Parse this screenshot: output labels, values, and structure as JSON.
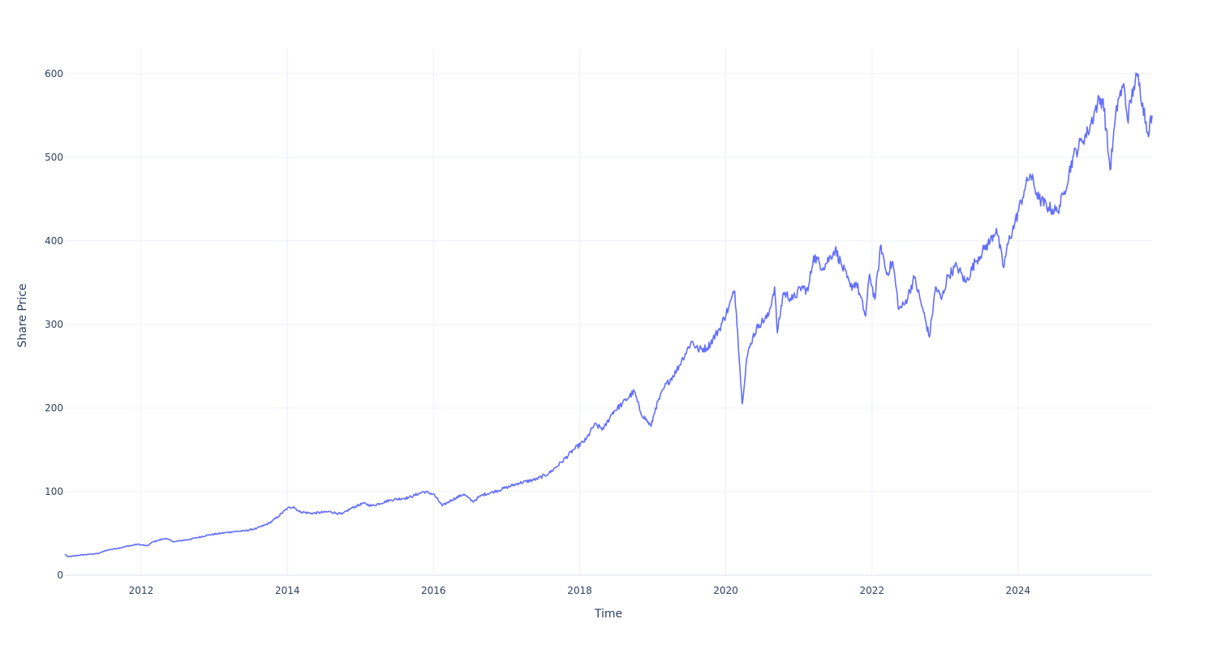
{
  "chart_data": {
    "type": "line",
    "title": "",
    "xlabel": "Time",
    "ylabel": "Share Price",
    "x_range": [
      "2010-12-16",
      "2025-11-01"
    ],
    "y_range": [
      0,
      630
    ],
    "x_ticks": [
      {
        "date": "2012-01-01",
        "label": "2012"
      },
      {
        "date": "2014-01-01",
        "label": "2014"
      },
      {
        "date": "2016-01-01",
        "label": "2016"
      },
      {
        "date": "2018-01-01",
        "label": "2018"
      },
      {
        "date": "2020-01-01",
        "label": "2020"
      },
      {
        "date": "2022-01-01",
        "label": "2022"
      },
      {
        "date": "2024-01-01",
        "label": "2024"
      }
    ],
    "y_ticks": [
      {
        "value": 0,
        "label": "0"
      },
      {
        "value": 100,
        "label": "100"
      },
      {
        "value": 200,
        "label": "200"
      },
      {
        "value": 300,
        "label": "300"
      },
      {
        "value": 400,
        "label": "400"
      },
      {
        "value": 500,
        "label": "500"
      },
      {
        "value": 600,
        "label": "600"
      }
    ],
    "grid": true,
    "line_color": "#636efa",
    "series": [
      {
        "values": [
          [
            "2010-12-16",
            25
          ],
          [
            "2011-01-01",
            22
          ],
          [
            "2011-03-01",
            24
          ],
          [
            "2011-06-01",
            26
          ],
          [
            "2011-07-15",
            30
          ],
          [
            "2011-09-01",
            32
          ],
          [
            "2011-11-01",
            35
          ],
          [
            "2011-12-15",
            37
          ],
          [
            "2012-02-01",
            35
          ],
          [
            "2012-03-01",
            40
          ],
          [
            "2012-05-01",
            44
          ],
          [
            "2012-06-15",
            40
          ],
          [
            "2012-09-01",
            43
          ],
          [
            "2012-12-01",
            48
          ],
          [
            "2013-02-01",
            50
          ],
          [
            "2013-04-01",
            52
          ],
          [
            "2013-06-01",
            53
          ],
          [
            "2013-08-01",
            56
          ],
          [
            "2013-10-01",
            62
          ],
          [
            "2013-11-15",
            70
          ],
          [
            "2014-01-01",
            80
          ],
          [
            "2014-02-01",
            82
          ],
          [
            "2014-03-01",
            76
          ],
          [
            "2014-05-01",
            74
          ],
          [
            "2014-08-01",
            76
          ],
          [
            "2014-10-01",
            73
          ],
          [
            "2014-11-15",
            80
          ],
          [
            "2015-01-15",
            86
          ],
          [
            "2015-03-01",
            83
          ],
          [
            "2015-06-01",
            90
          ],
          [
            "2015-09-01",
            93
          ],
          [
            "2015-11-15",
            100
          ],
          [
            "2016-01-01",
            97
          ],
          [
            "2016-02-15",
            83
          ],
          [
            "2016-04-01",
            90
          ],
          [
            "2016-06-01",
            97
          ],
          [
            "2016-07-15",
            88
          ],
          [
            "2016-09-01",
            96
          ],
          [
            "2016-11-01",
            100
          ],
          [
            "2017-01-01",
            105
          ],
          [
            "2017-03-01",
            110
          ],
          [
            "2017-06-01",
            115
          ],
          [
            "2017-08-01",
            122
          ],
          [
            "2017-10-01",
            135
          ],
          [
            "2017-12-01",
            150
          ],
          [
            "2018-02-01",
            162
          ],
          [
            "2018-03-15",
            180
          ],
          [
            "2018-05-01",
            175
          ],
          [
            "2018-06-15",
            195
          ],
          [
            "2018-08-01",
            205
          ],
          [
            "2018-10-01",
            220
          ],
          [
            "2018-11-01",
            195
          ],
          [
            "2018-12-24",
            178
          ],
          [
            "2019-01-15",
            200
          ],
          [
            "2019-03-01",
            225
          ],
          [
            "2019-05-01",
            245
          ],
          [
            "2019-06-01",
            260
          ],
          [
            "2019-07-15",
            280
          ],
          [
            "2019-08-15",
            270
          ],
          [
            "2019-10-01",
            272
          ],
          [
            "2019-12-01",
            295
          ],
          [
            "2020-01-15",
            320
          ],
          [
            "2020-02-15",
            340
          ],
          [
            "2020-03-01",
            290
          ],
          [
            "2020-03-23",
            205
          ],
          [
            "2020-04-15",
            260
          ],
          [
            "2020-05-15",
            285
          ],
          [
            "2020-06-15",
            300
          ],
          [
            "2020-08-01",
            310
          ],
          [
            "2020-09-01",
            345
          ],
          [
            "2020-09-15",
            290
          ],
          [
            "2020-10-15",
            338
          ],
          [
            "2020-12-01",
            330
          ],
          [
            "2021-01-15",
            345
          ],
          [
            "2021-02-15",
            340
          ],
          [
            "2021-03-15",
            382
          ],
          [
            "2021-05-01",
            368
          ],
          [
            "2021-07-01",
            390
          ],
          [
            "2021-08-01",
            372
          ],
          [
            "2021-09-15",
            345
          ],
          [
            "2021-10-15",
            350
          ],
          [
            "2021-11-30",
            310
          ],
          [
            "2021-12-20",
            360
          ],
          [
            "2022-01-15",
            330
          ],
          [
            "2022-02-15",
            395
          ],
          [
            "2022-03-15",
            360
          ],
          [
            "2022-04-15",
            375
          ],
          [
            "2022-05-15",
            318
          ],
          [
            "2022-06-15",
            325
          ],
          [
            "2022-08-01",
            356
          ],
          [
            "2022-09-15",
            315
          ],
          [
            "2022-10-15",
            285
          ],
          [
            "2022-11-15",
            345
          ],
          [
            "2022-12-15",
            330
          ],
          [
            "2023-01-15",
            358
          ],
          [
            "2023-03-01",
            370
          ],
          [
            "2023-04-15",
            350
          ],
          [
            "2023-06-01",
            375
          ],
          [
            "2023-07-15",
            390
          ],
          [
            "2023-08-15",
            400
          ],
          [
            "2023-09-15",
            415
          ],
          [
            "2023-10-20",
            368
          ],
          [
            "2023-11-15",
            400
          ],
          [
            "2023-12-15",
            420
          ],
          [
            "2024-02-01",
            460
          ],
          [
            "2024-03-01",
            480
          ],
          [
            "2024-04-15",
            450
          ],
          [
            "2024-06-01",
            440
          ],
          [
            "2024-07-15",
            435
          ],
          [
            "2024-08-15",
            455
          ],
          [
            "2024-10-01",
            500
          ],
          [
            "2024-11-15",
            520
          ],
          [
            "2024-12-15",
            530
          ],
          [
            "2025-02-01",
            565
          ],
          [
            "2025-03-01",
            570
          ],
          [
            "2025-04-05",
            485
          ],
          [
            "2025-04-20",
            520
          ],
          [
            "2025-05-15",
            570
          ],
          [
            "2025-06-15",
            585
          ],
          [
            "2025-07-01",
            545
          ],
          [
            "2025-08-01",
            585
          ],
          [
            "2025-08-20",
            597
          ],
          [
            "2025-09-15",
            565
          ],
          [
            "2025-10-10",
            530
          ],
          [
            "2025-11-01",
            550
          ]
        ]
      }
    ]
  }
}
